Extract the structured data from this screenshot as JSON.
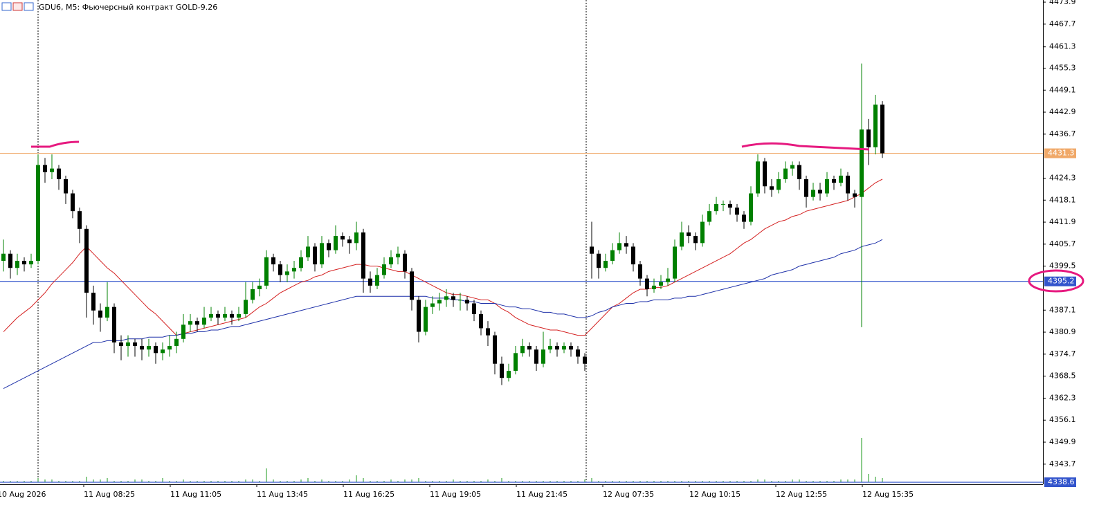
{
  "chart_data": {
    "type": "candlestick",
    "title": "GDU6, M5: Фьючерсный контракт GOLD-9.26",
    "ylim": [
      4338.6,
      4474.5
    ],
    "yticks": [
      4473.9,
      4467.7,
      4461.3,
      4455.3,
      4449.1,
      4442.9,
      4436.7,
      4424.3,
      4418.1,
      4411.9,
      4405.7,
      4399.5,
      4387.1,
      4380.9,
      4374.7,
      4368.5,
      4362.3,
      4356.1,
      4349.9,
      4343.7
    ],
    "x_labels": [
      "10 Aug 2026",
      "11 Aug 08:25",
      "11 Aug 11:05",
      "11 Aug 13:45",
      "11 Aug 16:25",
      "11 Aug 19:05",
      "11 Aug 21:45",
      "12 Aug 07:35",
      "12 Aug 10:15",
      "12 Aug 12:55",
      "12 Aug 15:35"
    ],
    "bull_color": "#008000",
    "bear_color": "#000000",
    "levels": [
      {
        "value": 4431.3,
        "color": "#f0a868"
      },
      {
        "value": 4395.2,
        "color": "#3355cc"
      },
      {
        "value": 4338.6,
        "color": "#3355cc"
      }
    ],
    "ohlc": [
      [
        4401,
        4407,
        4398,
        4403
      ],
      [
        4403,
        4404,
        4396,
        4399
      ],
      [
        4399,
        4403,
        4397,
        4401
      ],
      [
        4401,
        4402,
        4398,
        4400
      ],
      [
        4400,
        4403,
        4399,
        4401
      ],
      [
        4401,
        4431,
        4400,
        4428
      ],
      [
        4428,
        4430,
        4423,
        4426
      ],
      [
        4426,
        4431,
        4424,
        4427
      ],
      [
        4427,
        4428,
        4421,
        4424
      ],
      [
        4424,
        4425,
        4417,
        4420
      ],
      [
        4420,
        4421,
        4413,
        4415
      ],
      [
        4415,
        4416,
        4406,
        4410
      ],
      [
        4410,
        4411,
        4385,
        4392
      ],
      [
        4392,
        4394,
        4383,
        4387
      ],
      [
        4387,
        4389,
        4381,
        4385
      ],
      [
        4385,
        4395,
        4384,
        4388
      ],
      [
        4388,
        4389,
        4375,
        4378
      ],
      [
        4378,
        4380,
        4373,
        4377
      ],
      [
        4377,
        4380,
        4374,
        4378
      ],
      [
        4378,
        4379,
        4374,
        4377
      ],
      [
        4377,
        4379,
        4373,
        4376
      ],
      [
        4376,
        4379,
        4374,
        4377
      ],
      [
        4377,
        4378,
        4372,
        4375
      ],
      [
        4375,
        4378,
        4373,
        4376
      ],
      [
        4376,
        4380,
        4374,
        4377
      ],
      [
        4377,
        4381,
        4375,
        4379
      ],
      [
        4379,
        4386,
        4378,
        4383
      ],
      [
        4383,
        4386,
        4381,
        4384
      ],
      [
        4384,
        4385,
        4381,
        4383
      ],
      [
        4383,
        4388,
        4382,
        4385
      ],
      [
        4385,
        4388,
        4384,
        4386
      ],
      [
        4386,
        4387,
        4383,
        4385
      ],
      [
        4385,
        4388,
        4384,
        4386
      ],
      [
        4386,
        4387,
        4383,
        4385
      ],
      [
        4385,
        4388,
        4384,
        4386
      ],
      [
        4386,
        4395,
        4385,
        4390
      ],
      [
        4390,
        4395,
        4389,
        4393
      ],
      [
        4393,
        4396,
        4391,
        4394
      ],
      [
        4394,
        4404,
        4393,
        4402
      ],
      [
        4402,
        4403,
        4398,
        4400
      ],
      [
        4400,
        4401,
        4395,
        4397
      ],
      [
        4397,
        4400,
        4395,
        4398
      ],
      [
        4398,
        4401,
        4396,
        4399
      ],
      [
        4399,
        4404,
        4398,
        4402
      ],
      [
        4402,
        4408,
        4401,
        4405
      ],
      [
        4405,
        4406,
        4398,
        4400
      ],
      [
        4400,
        4408,
        4399,
        4406
      ],
      [
        4406,
        4407,
        4402,
        4404
      ],
      [
        4404,
        4411,
        4403,
        4408
      ],
      [
        4408,
        4409,
        4405,
        4407
      ],
      [
        4407,
        4408,
        4403,
        4406
      ],
      [
        4406,
        4412,
        4404,
        4409
      ],
      [
        4409,
        4410,
        4392,
        4396
      ],
      [
        4396,
        4398,
        4392,
        4394
      ],
      [
        4394,
        4399,
        4393,
        4397
      ],
      [
        4397,
        4402,
        4396,
        4400
      ],
      [
        4400,
        4404,
        4399,
        4402
      ],
      [
        4402,
        4405,
        4400,
        4403
      ],
      [
        4403,
        4404,
        4396,
        4398
      ],
      [
        4398,
        4399,
        4387,
        4390
      ],
      [
        4390,
        4391,
        4378,
        4381
      ],
      [
        4381,
        4390,
        4380,
        4388
      ],
      [
        4388,
        4391,
        4386,
        4389
      ],
      [
        4389,
        4392,
        4387,
        4390
      ],
      [
        4390,
        4393,
        4388,
        4391
      ],
      [
        4391,
        4392,
        4388,
        4390
      ],
      [
        4390,
        4392,
        4387,
        4390
      ],
      [
        4390,
        4391,
        4387,
        4389
      ],
      [
        4389,
        4390,
        4384,
        4386
      ],
      [
        4386,
        4387,
        4380,
        4382
      ],
      [
        4382,
        4384,
        4377,
        4380
      ],
      [
        4380,
        4381,
        4369,
        4372
      ],
      [
        4372,
        4374,
        4366,
        4368
      ],
      [
        4368,
        4372,
        4367,
        4370
      ],
      [
        4370,
        4377,
        4369,
        4375
      ],
      [
        4375,
        4379,
        4374,
        4377
      ],
      [
        4377,
        4378,
        4374,
        4376
      ],
      [
        4376,
        4377,
        4370,
        4372
      ],
      [
        4372,
        4381,
        4371,
        4376
      ],
      [
        4376,
        4379,
        4375,
        4377
      ],
      [
        4377,
        4378,
        4374,
        4376
      ],
      [
        4376,
        4378,
        4375,
        4377
      ],
      [
        4377,
        4378,
        4374,
        4376
      ],
      [
        4376,
        4377,
        4372,
        4374
      ],
      [
        4374,
        4375,
        4370,
        4372
      ],
      [
        4405,
        4412,
        4396,
        4403
      ],
      [
        4403,
        4404,
        4396,
        4399
      ],
      [
        4399,
        4403,
        4398,
        4401
      ],
      [
        4401,
        4406,
        4400,
        4404
      ],
      [
        4404,
        4409,
        4403,
        4406
      ],
      [
        4406,
        4408,
        4403,
        4405
      ],
      [
        4405,
        4406,
        4398,
        4400
      ],
      [
        4400,
        4401,
        4394,
        4396
      ],
      [
        4396,
        4397,
        4391,
        4393
      ],
      [
        4393,
        4396,
        4392,
        4394
      ],
      [
        4394,
        4397,
        4393,
        4395
      ],
      [
        4395,
        4399,
        4394,
        4396
      ],
      [
        4396,
        4407,
        4395,
        4405
      ],
      [
        4405,
        4412,
        4404,
        4409
      ],
      [
        4409,
        4411,
        4406,
        4408
      ],
      [
        4408,
        4409,
        4404,
        4406
      ],
      [
        4406,
        4414,
        4405,
        4412
      ],
      [
        4412,
        4417,
        4411,
        4415
      ],
      [
        4415,
        4419,
        4414,
        4417
      ],
      [
        4417,
        4418,
        4415,
        4417
      ],
      [
        4417,
        4418,
        4414,
        4416
      ],
      [
        4416,
        4417,
        4412,
        4414
      ],
      [
        4414,
        4415,
        4410,
        4412
      ],
      [
        4412,
        4422,
        4411,
        4420
      ],
      [
        4420,
        4431,
        4419,
        4429
      ],
      [
        4429,
        4430,
        4420,
        4422
      ],
      [
        4422,
        4424,
        4419,
        4421
      ],
      [
        4421,
        4426,
        4420,
        4424
      ],
      [
        4424,
        4429,
        4423,
        4427
      ],
      [
        4427,
        4429,
        4425,
        4428
      ],
      [
        4428,
        4429,
        4421,
        4424
      ],
      [
        4424,
        4425,
        4416,
        4419
      ],
      [
        4419,
        4423,
        4418,
        4421
      ],
      [
        4421,
        4423,
        4418,
        4420
      ],
      [
        4420,
        4426,
        4419,
        4424
      ],
      [
        4424,
        4425,
        4421,
        4423
      ],
      [
        4423,
        4427,
        4422,
        4425
      ],
      [
        4425,
        4426,
        4418,
        4420
      ],
      [
        4420,
        4421,
        4416,
        4419
      ],
      [
        4419,
        4456.6,
        4382.3,
        4438
      ],
      [
        4438,
        4441,
        4428,
        4433
      ],
      [
        4433,
        4447.8,
        4431,
        4445
      ],
      [
        4445,
        4446,
        4430,
        4431.3
      ]
    ],
    "series": [
      {
        "name": "MA fast",
        "color": "#d42020",
        "values": [
          4381,
          4383,
          4385,
          4386.5,
          4388,
          4390,
          4392,
          4394.5,
          4396.5,
          4398.5,
          4400.5,
          4403,
          4405,
          4403,
          4401,
          4399,
          4397.5,
          4395.5,
          4393.5,
          4391.5,
          4389.5,
          4387.5,
          4386,
          4384,
          4382,
          4380,
          4380.5,
          4381,
          4381.5,
          4382,
          4382.5,
          4383,
          4383.5,
          4384,
          4384.5,
          4385,
          4386.5,
          4388,
          4389,
          4390.5,
          4392,
          4393,
          4394,
          4395,
          4395.5,
          4396.5,
          4397,
          4398,
          4398.5,
          4399,
          4399.5,
          4400,
          4400,
          4399.5,
          4399.5,
          4399,
          4398.5,
          4398,
          4398,
          4397,
          4396,
          4395,
          4394,
          4393,
          4392,
          4391.5,
          4391.5,
          4391,
          4390.5,
          4390,
          4390,
          4389,
          4387.5,
          4386.5,
          4385,
          4384,
          4383,
          4382.5,
          4382,
          4381.5,
          4381.5,
          4381,
          4380.5,
          4380,
          4380,
          4382,
          4384,
          4386,
          4388,
          4389,
          4390.5,
          4392,
          4393,
          4393,
          4393.5,
          4393.5,
          4394,
          4395,
          4396,
          4397,
          4398,
          4399,
          4400,
          4401,
          4402,
          4403,
          4404.5,
          4406,
          4407,
          4408.5,
          4410,
          4411,
          4412,
          4412.5,
          4413.5,
          4414,
          4415,
          4415.5,
          4416,
          4416.5,
          4417,
          4417.5,
          4418,
          4419,
          4420,
          4421.5,
          4423,
          4424
        ]
      },
      {
        "name": "MA slow",
        "color": "#1c2fa8",
        "values": [
          4365,
          4366,
          4367,
          4368,
          4369,
          4370,
          4371,
          4372,
          4373,
          4374,
          4375,
          4376,
          4377,
          4378,
          4378,
          4378.5,
          4378.5,
          4378.5,
          4379,
          4379,
          4379,
          4379.5,
          4379.5,
          4379.5,
          4380,
          4380,
          4380.5,
          4380.5,
          4381,
          4381,
          4381.5,
          4381.5,
          4382,
          4382.5,
          4382.5,
          4383,
          4383.5,
          4384,
          4384.5,
          4385,
          4385.5,
          4386,
          4386.5,
          4387,
          4387.5,
          4388,
          4388.5,
          4389,
          4389.5,
          4390,
          4390.5,
          4391,
          4391,
          4391,
          4391,
          4391,
          4391,
          4391,
          4391,
          4391,
          4391,
          4391,
          4390.5,
          4390.5,
          4390.5,
          4390,
          4390,
          4389.5,
          4389.5,
          4389,
          4389,
          4389,
          4388.5,
          4388,
          4388,
          4387.5,
          4387.5,
          4387,
          4386.5,
          4386.5,
          4386,
          4386,
          4385.5,
          4385,
          4385,
          4385.5,
          4386.5,
          4387,
          4388,
          4388.5,
          4389,
          4389,
          4389.5,
          4389.5,
          4390,
          4390,
          4390,
          4390.5,
          4390.5,
          4391,
          4391,
          4391.5,
          4392,
          4392.5,
          4393,
          4393.5,
          4394,
          4394.5,
          4395,
          4395.5,
          4396,
          4397,
          4397.5,
          4398,
          4398.5,
          4399.5,
          4400,
          4400.5,
          4401,
          4401.5,
          4402,
          4403,
          4403.5,
          4404,
          4405,
          4405.5,
          4406,
          4407
        ]
      }
    ],
    "volume": [
      1,
      1,
      1,
      1,
      1,
      3,
      2,
      2,
      1,
      1,
      1,
      1,
      4,
      2,
      2,
      3,
      1,
      1,
      1,
      2,
      2,
      1,
      1,
      3,
      1,
      1,
      2,
      1,
      1,
      1,
      1,
      1,
      1,
      1,
      1,
      2,
      2,
      1,
      10,
      2,
      1,
      1,
      1,
      2,
      3,
      1,
      2,
      1,
      1,
      1,
      2,
      5,
      3,
      1,
      1,
      1,
      2,
      1,
      2,
      2,
      3,
      1,
      1,
      1,
      1,
      2,
      1,
      1,
      1,
      1,
      2,
      1,
      3,
      1,
      1,
      1,
      1,
      1,
      1,
      1,
      1,
      1,
      1,
      1,
      2,
      3,
      1,
      1,
      1,
      1,
      1,
      1,
      1,
      1,
      1,
      1,
      1,
      1,
      1,
      1,
      1,
      1,
      1,
      1,
      1,
      1,
      1,
      1,
      1,
      2,
      2,
      1,
      1,
      1,
      2,
      2,
      1,
      1,
      1,
      1,
      1,
      2,
      2,
      2,
      32,
      6,
      4,
      3
    ]
  }
}
